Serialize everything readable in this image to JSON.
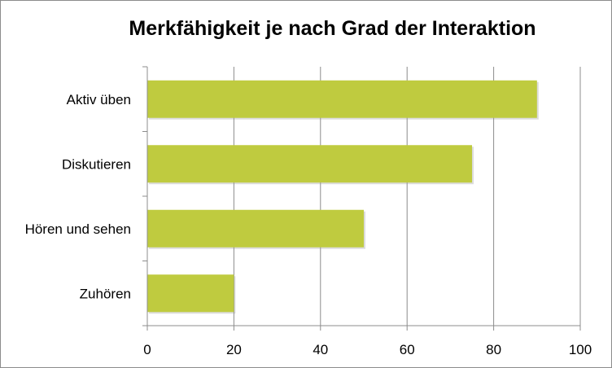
{
  "chart_data": {
    "type": "bar",
    "orientation": "horizontal",
    "title": "Merkfähigkeit je nach Grad der Interaktion",
    "categories": [
      "Aktiv üben",
      "Diskutieren",
      "Hören und sehen",
      "Zuhören"
    ],
    "values": [
      90,
      75,
      50,
      20
    ],
    "xlim": [
      0,
      100
    ],
    "xticks": [
      0,
      20,
      40,
      60,
      80,
      100
    ],
    "grid": true,
    "legend": "none",
    "bar_color": "#bfcb3f"
  }
}
